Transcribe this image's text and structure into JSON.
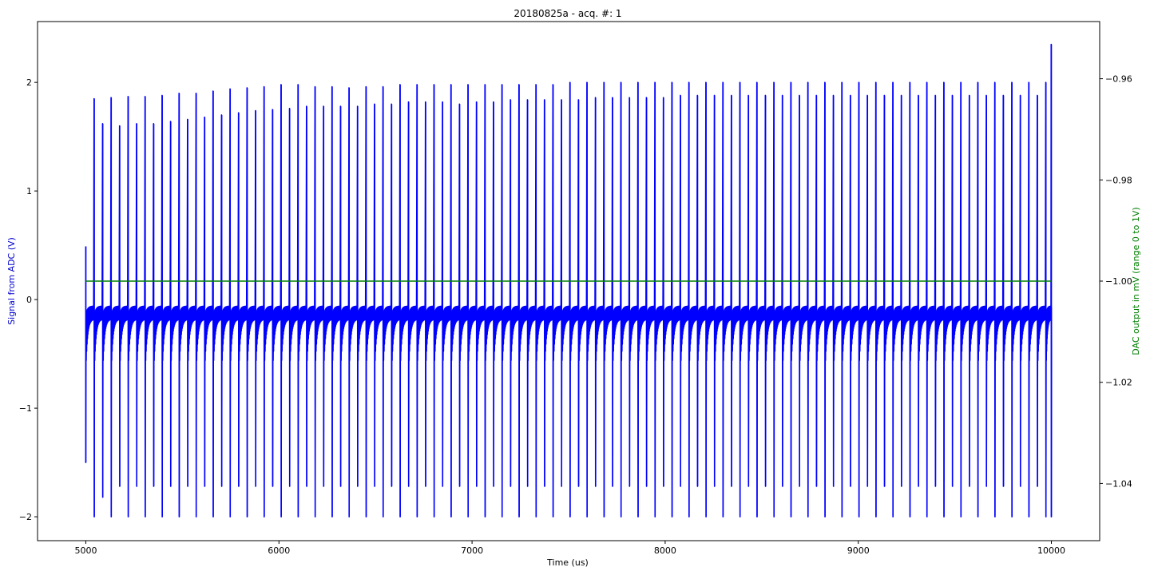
{
  "chart_data": {
    "type": "line",
    "title": "20180825a - acq. #: 1",
    "xlabel": "Time (us)",
    "ylabel": "Signal from ADC (V)",
    "y2label": "DAC output in mV (range 0 to 1V)",
    "xlim": [
      4750,
      10250
    ],
    "ylim": [
      -2.22,
      2.56
    ],
    "y2lim": [
      -1.0513,
      -0.9487
    ],
    "x_ticks": [
      5000,
      6000,
      7000,
      8000,
      9000,
      10000
    ],
    "y_ticks": [
      -2,
      -1,
      0,
      1,
      2
    ],
    "y2_ticks": [
      -1.04,
      -1.02,
      -1.0,
      -0.98,
      -0.96
    ],
    "x_tick_labels": [
      "5000",
      "6000",
      "7000",
      "8000",
      "9000",
      "10000"
    ],
    "y_tick_labels": [
      "−2",
      "−1",
      "0",
      "1",
      "2"
    ],
    "y2_tick_labels": [
      "−1.04",
      "−1.02",
      "−1.00",
      "−0.98",
      "−0.96"
    ],
    "grid": false,
    "series": [
      {
        "axis": "left",
        "color": "#0000ff",
        "baseline": -0.12,
        "x_range": [
          5000,
          10000
        ],
        "pulse_times": [
          5000,
          5044,
          5088,
          5132,
          5176,
          5220,
          5264,
          5308,
          5352,
          5396,
          5440,
          5484,
          5528,
          5572,
          5616,
          5660,
          5704,
          5748,
          5792,
          5836,
          5880,
          5924,
          5968,
          6012,
          6056,
          6100,
          6144,
          6188,
          6232,
          6276,
          6320,
          6364,
          6408,
          6452,
          6496,
          6540,
          6584,
          6628,
          6672,
          6716,
          6760,
          6804,
          6848,
          6892,
          6936,
          6980,
          7024,
          7068,
          7112,
          7156,
          7200,
          7244,
          7288,
          7332,
          7376,
          7420,
          7464,
          7508,
          7552,
          7596,
          7640,
          7684,
          7728,
          7772,
          7816,
          7860,
          7904,
          7948,
          7992,
          8036,
          8080,
          8124,
          8168,
          8212,
          8256,
          8300,
          8344,
          8388,
          8432,
          8476,
          8520,
          8564,
          8608,
          8652,
          8696,
          8740,
          8784,
          8828,
          8872,
          8916,
          8960,
          9004,
          9048,
          9092,
          9136,
          9180,
          9224,
          9268,
          9312,
          9356,
          9400,
          9444,
          9488,
          9532,
          9576,
          9620,
          9664,
          9708,
          9752,
          9796,
          9840,
          9884,
          9928,
          9972,
          10000
        ],
        "pulse_peaks": [
          0.49,
          1.85,
          1.62,
          1.86,
          1.6,
          1.87,
          1.62,
          1.87,
          1.62,
          1.88,
          1.64,
          1.9,
          1.66,
          1.9,
          1.68,
          1.92,
          1.7,
          1.94,
          1.72,
          1.95,
          1.74,
          1.96,
          1.75,
          1.98,
          1.76,
          1.98,
          1.78,
          1.96,
          1.78,
          1.96,
          1.78,
          1.95,
          1.78,
          1.96,
          1.8,
          1.96,
          1.8,
          1.98,
          1.82,
          1.98,
          1.82,
          1.98,
          1.82,
          1.98,
          1.8,
          1.98,
          1.82,
          1.98,
          1.82,
          1.98,
          1.84,
          1.98,
          1.84,
          1.98,
          1.84,
          1.98,
          1.84,
          2.0,
          1.84,
          2.0,
          1.86,
          2.0,
          1.86,
          2.0,
          1.86,
          2.0,
          1.86,
          2.0,
          1.86,
          2.0,
          1.88,
          2.0,
          1.88,
          2.0,
          1.88,
          2.0,
          1.88,
          2.0,
          1.88,
          2.0,
          1.88,
          2.0,
          1.88,
          2.0,
          1.88,
          2.0,
          1.88,
          2.0,
          1.88,
          2.0,
          1.88,
          2.0,
          1.88,
          2.0,
          1.88,
          2.0,
          1.88,
          2.0,
          1.88,
          2.0,
          1.88,
          2.0,
          1.88,
          2.0,
          1.88,
          2.0,
          1.88,
          2.0,
          1.88,
          2.0,
          1.88,
          2.0,
          1.88,
          2.0,
          2.35
        ],
        "pulse_troughs": [
          -1.5,
          -2.0,
          -1.82,
          -2.0,
          -1.72,
          -2.0,
          -1.72,
          -2.0,
          -1.72,
          -2.0,
          -1.72,
          -2.0,
          -1.72,
          -2.0,
          -1.72,
          -2.0,
          -1.72,
          -2.0,
          -1.72,
          -2.0,
          -1.72,
          -2.0,
          -1.72,
          -2.0,
          -1.72,
          -2.0,
          -1.72,
          -2.0,
          -1.72,
          -2.0,
          -1.72,
          -2.0,
          -1.72,
          -2.0,
          -1.72,
          -2.0,
          -1.72,
          -2.0,
          -1.72,
          -2.0,
          -1.72,
          -2.0,
          -1.72,
          -2.0,
          -1.72,
          -2.0,
          -1.72,
          -2.0,
          -1.72,
          -2.0,
          -1.72,
          -2.0,
          -1.72,
          -2.0,
          -1.72,
          -2.0,
          -1.72,
          -2.0,
          -1.72,
          -2.0,
          -1.72,
          -2.0,
          -1.72,
          -2.0,
          -1.72,
          -2.0,
          -1.72,
          -2.0,
          -1.72,
          -2.0,
          -1.72,
          -2.0,
          -1.72,
          -2.0,
          -1.72,
          -2.0,
          -1.72,
          -2.0,
          -1.72,
          -2.0,
          -1.72,
          -2.0,
          -1.72,
          -2.0,
          -1.72,
          -2.0,
          -1.72,
          -2.0,
          -1.72,
          -2.0,
          -1.72,
          -2.0,
          -1.72,
          -2.0,
          -1.72,
          -2.0,
          -1.72,
          -2.0,
          -1.72,
          -2.0,
          -1.72,
          -2.0,
          -1.72,
          -2.0,
          -1.72,
          -2.0,
          -1.72,
          -2.0,
          -1.72,
          -2.0,
          -1.72,
          -2.0,
          -1.72,
          -2.0,
          -2.0
        ]
      },
      {
        "axis": "right",
        "color": "#008000",
        "x": [
          5000,
          10000
        ],
        "y": [
          -1.0,
          -1.0
        ]
      }
    ]
  }
}
